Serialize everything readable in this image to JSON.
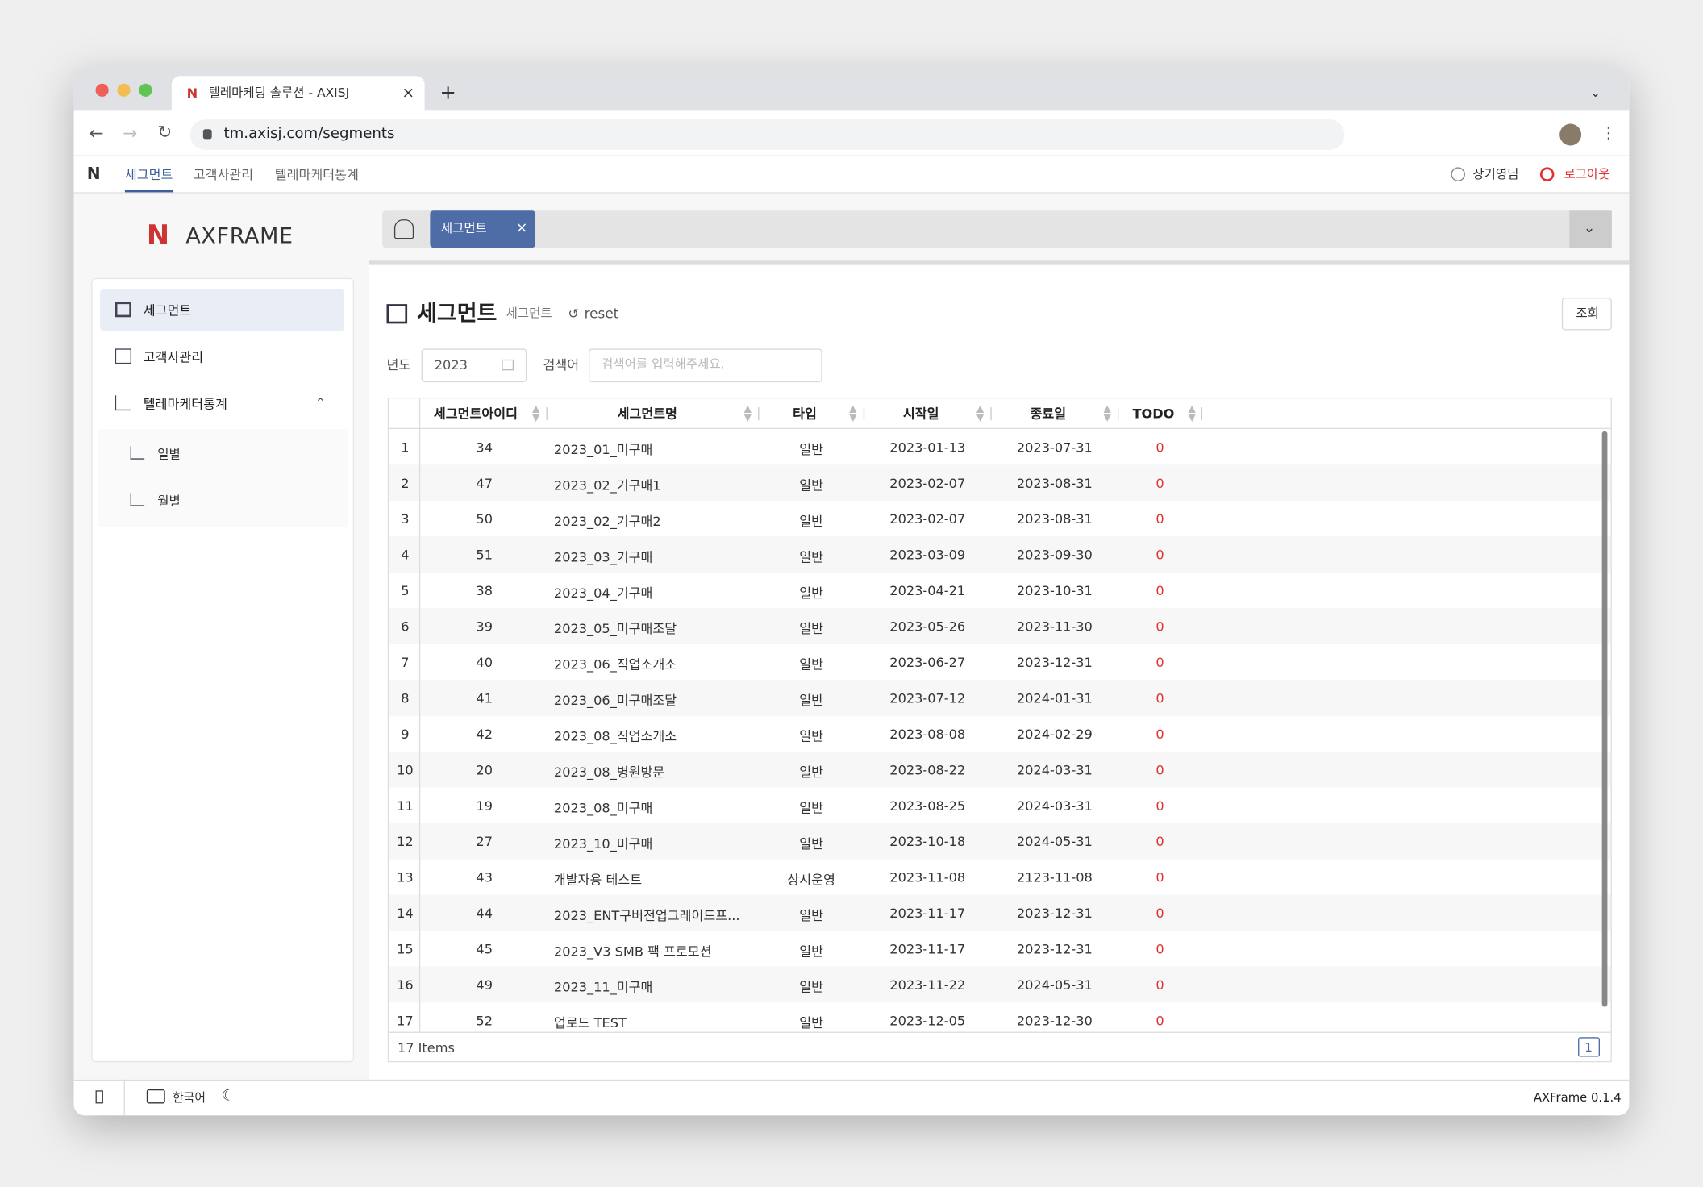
{
  "browser": {
    "tab_title": "텔레마케팅 솔루션 - AXISJ",
    "url": "tm.axisj.com/segments"
  },
  "nav": {
    "items": [
      "세그먼트",
      "고객사관리",
      "텔레마케터통계"
    ],
    "user": "장기영님",
    "logout": "로그아웃"
  },
  "sidebar": {
    "logo": "AXFRAME",
    "menu": [
      {
        "label": "세그먼트"
      },
      {
        "label": "고객사관리"
      },
      {
        "label": "텔레마케터통계",
        "children": [
          "일별",
          "월별"
        ]
      }
    ]
  },
  "tabs": {
    "items": [
      "세그먼트"
    ]
  },
  "page": {
    "title": "세그먼트",
    "breadcrumb": "세그먼트",
    "reset": "reset",
    "search_button": "조회",
    "filters": {
      "year_label": "년도",
      "year": "2023",
      "keyword_label": "검색어",
      "keyword_placeholder": "검색어를 입력해주세요."
    }
  },
  "table": {
    "headers": [
      "세그먼트아이디",
      "세그먼트명",
      "타입",
      "시작일",
      "종료일",
      "TODO"
    ],
    "rows": [
      [
        1,
        34,
        "2023_01_미구매",
        "일반",
        "2023-01-13",
        "2023-07-31",
        0
      ],
      [
        2,
        47,
        "2023_02_기구매1",
        "일반",
        "2023-02-07",
        "2023-08-31",
        0
      ],
      [
        3,
        50,
        "2023_02_기구매2",
        "일반",
        "2023-02-07",
        "2023-08-31",
        0
      ],
      [
        4,
        51,
        "2023_03_기구매",
        "일반",
        "2023-03-09",
        "2023-09-30",
        0
      ],
      [
        5,
        38,
        "2023_04_기구매",
        "일반",
        "2023-04-21",
        "2023-10-31",
        0
      ],
      [
        6,
        39,
        "2023_05_미구매조달",
        "일반",
        "2023-05-26",
        "2023-11-30",
        0
      ],
      [
        7,
        40,
        "2023_06_직업소개소",
        "일반",
        "2023-06-27",
        "2023-12-31",
        0
      ],
      [
        8,
        41,
        "2023_06_미구매조달",
        "일반",
        "2023-07-12",
        "2024-01-31",
        0
      ],
      [
        9,
        42,
        "2023_08_직업소개소",
        "일반",
        "2023-08-08",
        "2024-02-29",
        0
      ],
      [
        10,
        20,
        "2023_08_병원방문",
        "일반",
        "2023-08-22",
        "2024-03-31",
        0
      ],
      [
        11,
        19,
        "2023_08_미구매",
        "일반",
        "2023-08-25",
        "2024-03-31",
        0
      ],
      [
        12,
        27,
        "2023_10_미구매",
        "일반",
        "2023-10-18",
        "2024-05-31",
        0
      ],
      [
        13,
        43,
        "개발자용 테스트",
        "상시운영",
        "2023-11-08",
        "2123-11-08",
        0
      ],
      [
        14,
        44,
        "2023_ENT구버전업그레이드프...",
        "일반",
        "2023-11-17",
        "2023-12-31",
        0
      ],
      [
        15,
        45,
        "2023_V3 SMB 팩 프로모션",
        "일반",
        "2023-11-17",
        "2023-12-31",
        0
      ],
      [
        16,
        49,
        "2023_11_미구매",
        "일반",
        "2023-11-22",
        "2024-05-31",
        0
      ],
      [
        17,
        52,
        "업로드 TEST",
        "일반",
        "2023-12-05",
        "2023-12-30",
        0
      ]
    ],
    "footer": "17 Items",
    "page": 1
  },
  "footer": {
    "language": "한국어",
    "version": "AXFrame 0.1.4"
  }
}
